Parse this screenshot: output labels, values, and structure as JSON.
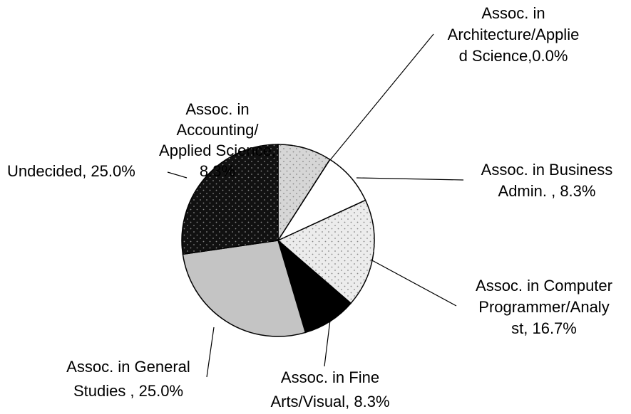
{
  "chart_data": {
    "type": "pie",
    "labels": [
      [
        "Assoc. in",
        "Accounting/",
        "Applied Science,",
        "8.3%"
      ],
      [
        "Assoc. in",
        "Architecture/Applie",
        "d Science,0.0%"
      ],
      [
        "Assoc. in Business",
        "Admin. , 8.3%"
      ],
      [
        "Assoc. in Computer",
        "Programmer/Analy",
        "st, 16.7%"
      ],
      [
        "Assoc. in Fine",
        "Arts/Visual, 8.3%"
      ],
      [
        "Assoc. in General",
        "Studies , 25.0%"
      ],
      [
        "Undecided, 25.0%"
      ]
    ],
    "values": [
      8.3,
      0.0,
      8.3,
      16.7,
      8.3,
      25.0,
      25.0
    ],
    "colors": [
      "#d6d6d6",
      "#ffffff",
      "#ffffff",
      "#ececec",
      "#000000",
      "#c4c4c4",
      "#111111"
    ]
  }
}
